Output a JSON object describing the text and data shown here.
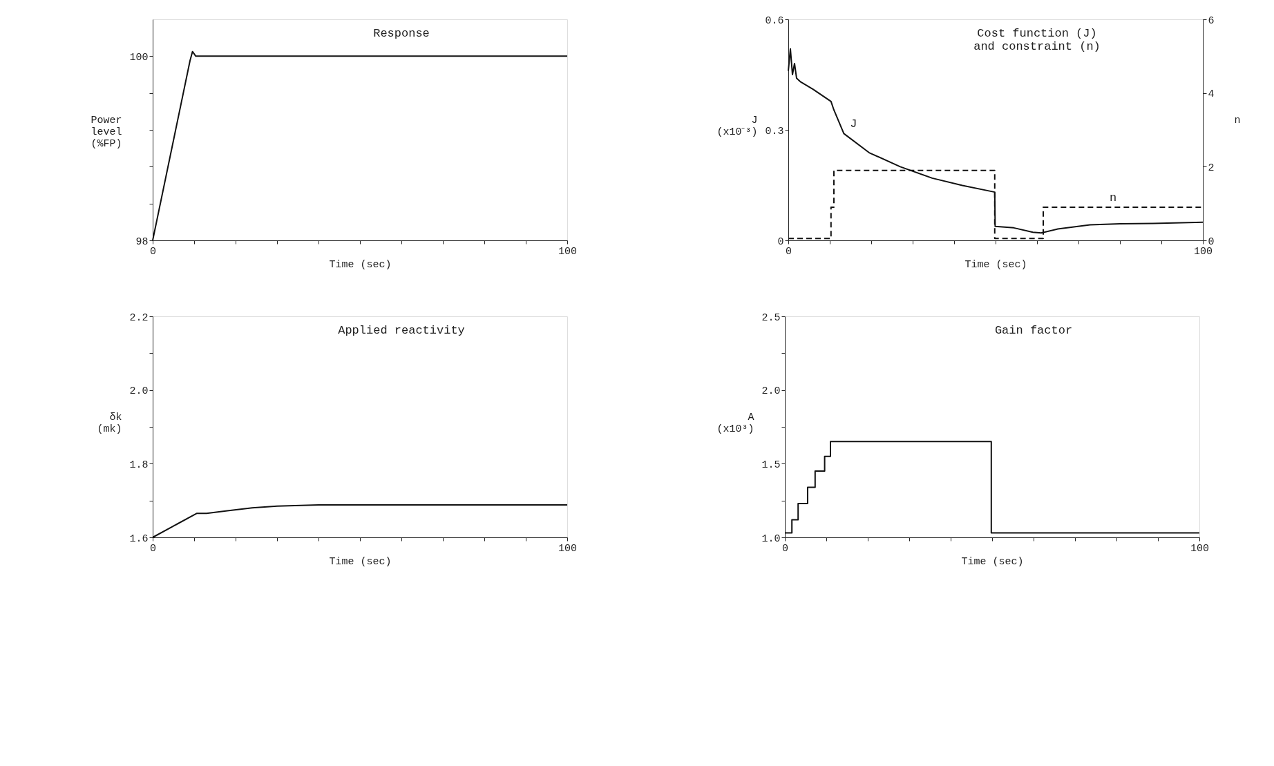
{
  "chart_data": [
    {
      "type": "line",
      "title": "Response",
      "xlabel": "Time (sec)",
      "ylabel": "Power\nlevel\n(%FP)",
      "xlim": [
        0,
        100
      ],
      "ylim": [
        98,
        100.4
      ],
      "xticks": [
        0,
        {
          "value": 10,
          "label": null
        },
        {
          "value": 20,
          "label": null
        },
        {
          "value": 30,
          "label": null
        },
        {
          "value": 40,
          "label": null
        },
        {
          "value": 50,
          "label": null
        },
        {
          "value": 60,
          "label": null
        },
        {
          "value": 70,
          "label": null
        },
        {
          "value": 80,
          "label": null
        },
        {
          "value": 90,
          "label": null
        },
        100
      ],
      "yticks": [
        98,
        {
          "value": 98.4,
          "label": null
        },
        {
          "value": 98.8,
          "label": null
        },
        {
          "value": 99.2,
          "label": null
        },
        {
          "value": 99.6,
          "label": null
        },
        100
      ],
      "grid": false,
      "series": [
        {
          "color": "#111111",
          "line_style": "solid",
          "x": [
            0,
            9.0,
            9.6,
            10.4,
            11,
            100
          ],
          "values": [
            98,
            99.95,
            100.05,
            100.0,
            100,
            100
          ]
        }
      ]
    },
    {
      "type": "line",
      "title": "Cost function  (J)\nand constraint (n)",
      "xlabel": "Time (sec)",
      "ylabel": "J\n(x10⁻³)",
      "y2label": "n",
      "xlim": [
        0,
        100
      ],
      "ylim": [
        0,
        0.6
      ],
      "y2lim": [
        0,
        6
      ],
      "xticks": [
        0,
        {
          "value": 10,
          "label": null
        },
        {
          "value": 20,
          "label": null
        },
        {
          "value": 30,
          "label": null
        },
        {
          "value": 40,
          "label": null
        },
        {
          "value": 50,
          "label": null
        },
        {
          "value": 60,
          "label": null
        },
        {
          "value": 70,
          "label": null
        },
        {
          "value": 80,
          "label": null
        },
        {
          "value": 90,
          "label": null
        },
        100
      ],
      "yticks": [
        0,
        0.3,
        0.6
      ],
      "y2ticks": [
        0,
        2,
        4,
        6
      ],
      "grid": false,
      "annotations": [
        {
          "text": "J",
          "x": 13.4,
          "y": 0.29
        },
        {
          "text": "n",
          "x": 76,
          "y": 0.09
        }
      ],
      "series": [
        {
          "color": "#111111",
          "line_style": "solid",
          "x": [
            0,
            0.5,
            1,
            1.5,
            2,
            3,
            6,
            10.3,
            11,
            13.4,
            19.5,
            27,
            34.7,
            42,
            49.8,
            49.9,
            54.4,
            59,
            61,
            65,
            72.8,
            80,
            88,
            100
          ],
          "values": [
            0.46,
            0.52,
            0.45,
            0.48,
            0.44,
            0.43,
            0.41,
            0.377,
            0.354,
            0.29,
            0.238,
            0.2,
            0.169,
            0.149,
            0.131,
            0.038,
            0.034,
            0.022,
            0.02,
            0.031,
            0.042,
            0.045,
            0.046,
            0.049
          ]
        },
        {
          "type": "line",
          "axis": "y2",
          "color": "#111111",
          "line_style": "dashed",
          "x": [
            0,
            10.3,
            10.3,
            11,
            11,
            49.8,
            49.8,
            61.5,
            61.5,
            100
          ],
          "values": [
            0.05,
            0.05,
            0.9,
            0.9,
            1.9,
            1.9,
            0.05,
            0.05,
            0.9,
            0.9
          ]
        }
      ]
    },
    {
      "type": "line",
      "title": "Applied reactivity",
      "xlabel": "Time (sec)",
      "ylabel": "δk\n(mk)",
      "xlim": [
        0,
        100
      ],
      "ylim": [
        1.6,
        2.2
      ],
      "xticks": [
        0,
        {
          "value": 10,
          "label": null
        },
        {
          "value": 20,
          "label": null
        },
        {
          "value": 30,
          "label": null
        },
        {
          "value": 40,
          "label": null
        },
        {
          "value": 50,
          "label": null
        },
        {
          "value": 60,
          "label": null
        },
        {
          "value": 70,
          "label": null
        },
        {
          "value": 80,
          "label": null
        },
        {
          "value": 90,
          "label": null
        },
        100
      ],
      "yticks": [
        {
          "value": 1.6,
          "label": "1.6"
        },
        {
          "value": 1.7,
          "label": null
        },
        {
          "value": 1.8,
          "label": "1.8"
        },
        {
          "value": 1.9,
          "label": null
        },
        {
          "value": 2.0,
          "label": "2.0"
        },
        {
          "value": 2.1,
          "label": null
        },
        {
          "value": 2.2,
          "label": "2.2"
        }
      ],
      "grid": false,
      "series": [
        {
          "color": "#111111",
          "line_style": "solid",
          "x": [
            0,
            10.6,
            13,
            18,
            24,
            30,
            40,
            100
          ],
          "values": [
            1.6,
            1.665,
            1.665,
            1.672,
            1.68,
            1.685,
            1.688,
            1.688
          ]
        }
      ]
    },
    {
      "type": "step",
      "title": "Gain factor",
      "xlabel": "Time (sec)",
      "ylabel": "A\n(x10³)",
      "xlim": [
        0,
        100
      ],
      "ylim": [
        1.0,
        2.5
      ],
      "xticks": [
        0,
        {
          "value": 10,
          "label": null
        },
        {
          "value": 20,
          "label": null
        },
        {
          "value": 30,
          "label": null
        },
        {
          "value": 40,
          "label": null
        },
        {
          "value": 50,
          "label": null
        },
        {
          "value": 60,
          "label": null
        },
        {
          "value": 70,
          "label": null
        },
        {
          "value": 80,
          "label": null
        },
        {
          "value": 90,
          "label": null
        },
        100
      ],
      "yticks": [
        {
          "value": 1.0,
          "label": "1.0"
        },
        {
          "value": 1.25,
          "label": null
        },
        {
          "value": 1.5,
          "label": "1.5"
        },
        {
          "value": 1.75,
          "label": null
        },
        {
          "value": 2.0,
          "label": "2.0"
        },
        {
          "value": 2.25,
          "label": null
        },
        {
          "value": 2.5,
          "label": "2.5"
        }
      ],
      "grid": false,
      "series": [
        {
          "color": "#111111",
          "line_style": "solid",
          "x": [
            0,
            1.7,
            3.2,
            5.5,
            7.3,
            9.6,
            11,
            49.8,
            100
          ],
          "values": [
            1.03,
            1.12,
            1.23,
            1.34,
            1.45,
            1.55,
            1.65,
            1.03,
            1.03
          ]
        }
      ]
    }
  ]
}
